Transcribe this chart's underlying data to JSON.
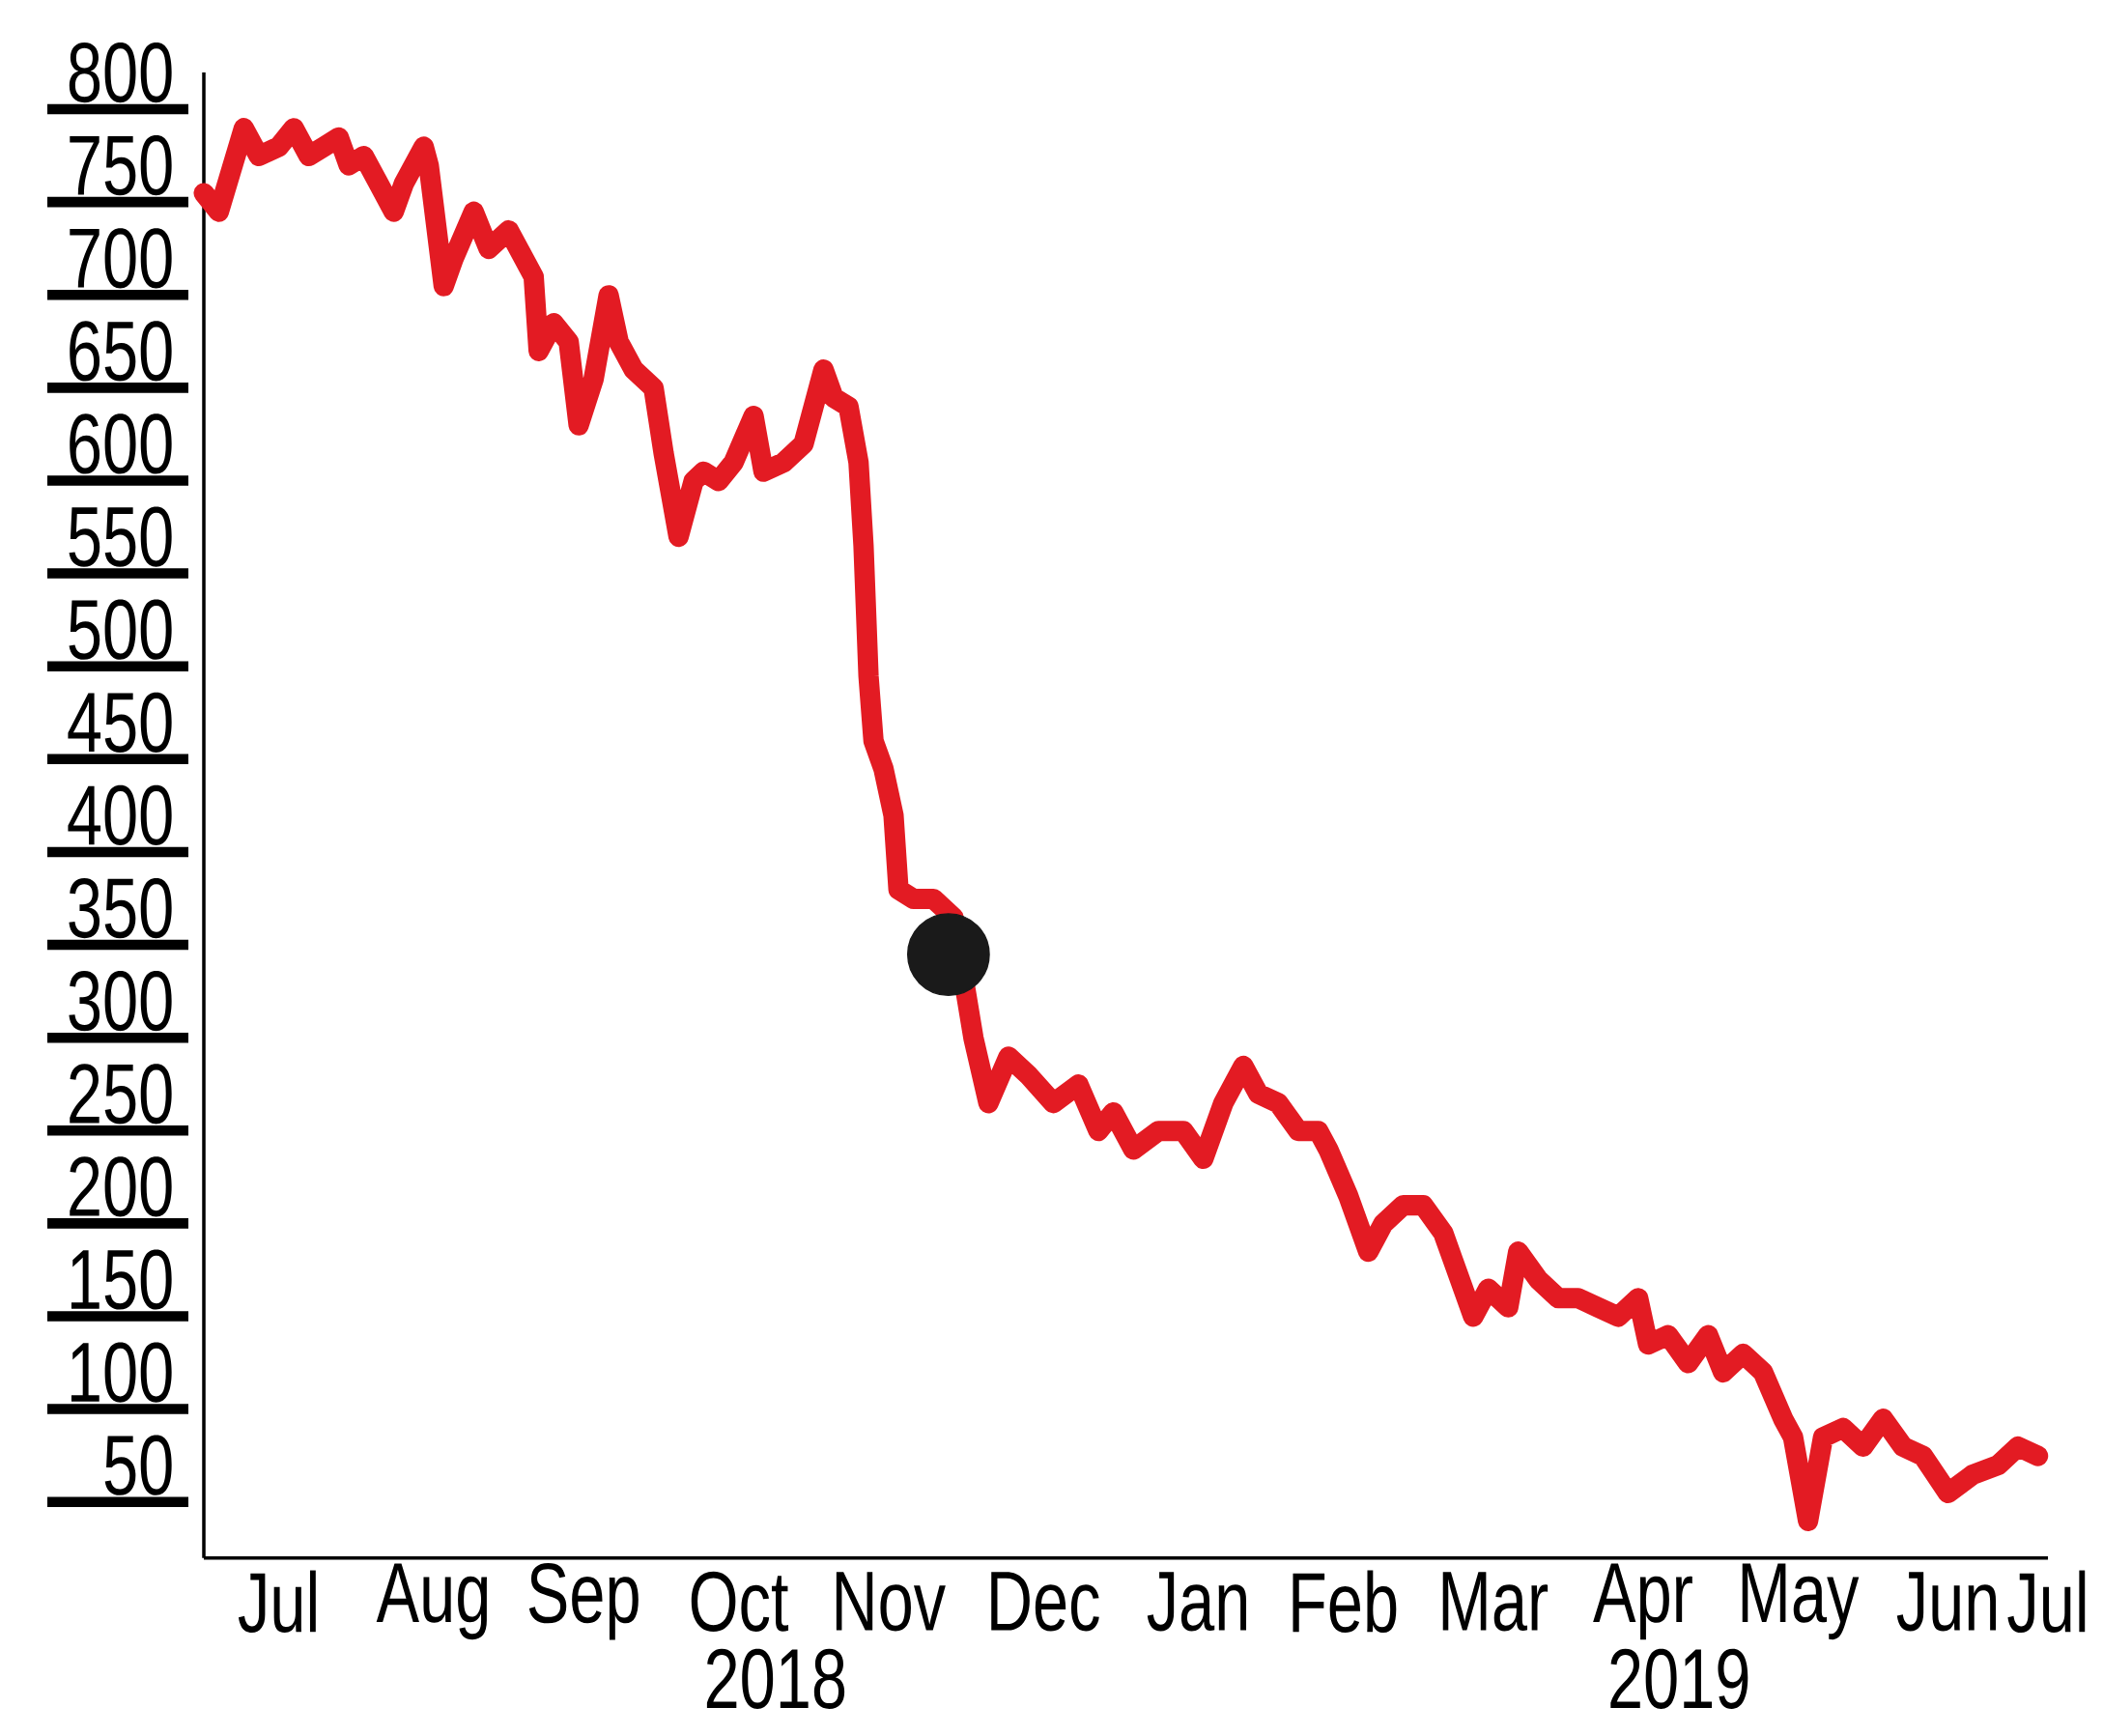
{
  "chart_data": {
    "type": "line",
    "x": [
      "2018-07-01",
      "2018-07-04",
      "2018-07-09",
      "2018-07-12",
      "2018-07-16",
      "2018-07-19",
      "2018-07-22",
      "2018-07-25",
      "2018-07-28",
      "2018-07-30",
      "2018-08-02",
      "2018-08-05",
      "2018-08-08",
      "2018-08-10",
      "2018-08-14",
      "2018-08-15",
      "2018-08-18",
      "2018-08-20",
      "2018-08-24",
      "2018-08-27",
      "2018-08-31",
      "2018-09-03",
      "2018-09-05",
      "2018-09-06",
      "2018-09-09",
      "2018-09-12",
      "2018-09-14",
      "2018-09-17",
      "2018-09-20",
      "2018-09-22",
      "2018-09-25",
      "2018-09-29",
      "2018-10-01",
      "2018-10-04",
      "2018-10-07",
      "2018-10-09",
      "2018-10-12",
      "2018-10-15",
      "2018-10-19",
      "2018-10-21",
      "2018-10-25",
      "2018-10-29",
      "2018-11-02",
      "2018-11-04",
      "2018-11-07",
      "2018-11-09",
      "2018-11-10",
      "2018-11-11",
      "2018-11-12",
      "2018-11-14",
      "2018-11-16",
      "2018-11-17",
      "2018-11-20",
      "2018-11-24",
      "2018-11-28",
      "2018-12-02",
      "2018-12-05",
      "2018-12-09",
      "2018-12-13",
      "2018-12-18",
      "2018-12-23",
      "2018-12-27",
      "2018-12-30",
      "2019-01-03",
      "2019-01-08",
      "2019-01-13",
      "2019-01-17",
      "2019-01-21",
      "2019-01-25",
      "2019-01-28",
      "2019-02-01",
      "2019-02-05",
      "2019-02-09",
      "2019-02-11",
      "2019-02-15",
      "2019-02-19",
      "2019-02-22",
      "2019-02-26",
      "2019-03-02",
      "2019-03-06",
      "2019-03-08",
      "2019-03-12",
      "2019-03-15",
      "2019-03-19",
      "2019-03-21",
      "2019-03-25",
      "2019-03-29",
      "2019-04-02",
      "2019-04-06",
      "2019-04-10",
      "2019-04-14",
      "2019-04-16",
      "2019-04-20",
      "2019-04-24",
      "2019-04-28",
      "2019-05-01",
      "2019-05-05",
      "2019-05-09",
      "2019-05-13",
      "2019-05-15",
      "2019-05-18",
      "2019-05-21",
      "2019-05-25",
      "2019-05-29",
      "2019-06-02",
      "2019-06-06",
      "2019-06-10",
      "2019-06-15",
      "2019-06-20",
      "2019-06-25",
      "2019-06-29",
      "2019-07-03"
    ],
    "series": [
      {
        "color": "#e31b23",
        "values": [
          735,
          725,
          770,
          755,
          760,
          770,
          755,
          760,
          765,
          750,
          755,
          740,
          725,
          740,
          760,
          750,
          685,
          700,
          725,
          705,
          715,
          700,
          690,
          650,
          665,
          655,
          610,
          635,
          680,
          655,
          640,
          630,
          595,
          550,
          580,
          585,
          580,
          590,
          615,
          585,
          590,
          600,
          640,
          625,
          620,
          590,
          545,
          475,
          440,
          425,
          400,
          360,
          355,
          355,
          345,
          280,
          245,
          270,
          260,
          245,
          255,
          230,
          240,
          220,
          230,
          230,
          215,
          245,
          265,
          250,
          245,
          230,
          230,
          220,
          195,
          165,
          180,
          190,
          190,
          175,
          160,
          130,
          145,
          135,
          165,
          150,
          140,
          140,
          135,
          130,
          140,
          115,
          120,
          105,
          120,
          100,
          110,
          100,
          75,
          65,
          20,
          65,
          70,
          60,
          75,
          60,
          55,
          35,
          45,
          50,
          60,
          55
        ]
      },
      {
        "type": "scatter",
        "marker": "circle",
        "color": "#1a1a1a",
        "x": [
          "2018-11-27"
        ],
        "values": [
          325
        ]
      }
    ],
    "xlim": [
      "2018-07-01",
      "2019-07-05"
    ],
    "ylim": [
      0,
      800
    ],
    "yticks": [
      50,
      100,
      150,
      200,
      250,
      300,
      350,
      400,
      450,
      500,
      550,
      600,
      650,
      700,
      750,
      800
    ],
    "xticks": [
      {
        "value": "2018-07-16",
        "label": "Jul"
      },
      {
        "value": "2018-08-16",
        "label": "Aug"
      },
      {
        "value": "2018-09-15",
        "label": "Sep"
      },
      {
        "value": "2018-10-16",
        "label": "Oct"
      },
      {
        "value": "2018-11-15",
        "label": "Nov"
      },
      {
        "value": "2018-12-16",
        "label": "Dec"
      },
      {
        "value": "2019-01-16",
        "label": "Jan"
      },
      {
        "value": "2019-02-14",
        "label": "Feb"
      },
      {
        "value": "2019-03-16",
        "label": "Mar"
      },
      {
        "value": "2019-04-15",
        "label": "Apr"
      },
      {
        "value": "2019-05-16",
        "label": "May"
      },
      {
        "value": "2019-06-15",
        "label": "Jun"
      },
      {
        "value": "2019-07-05",
        "label": "Jul"
      }
    ],
    "annotations": [
      "2018",
      "2019"
    ]
  }
}
